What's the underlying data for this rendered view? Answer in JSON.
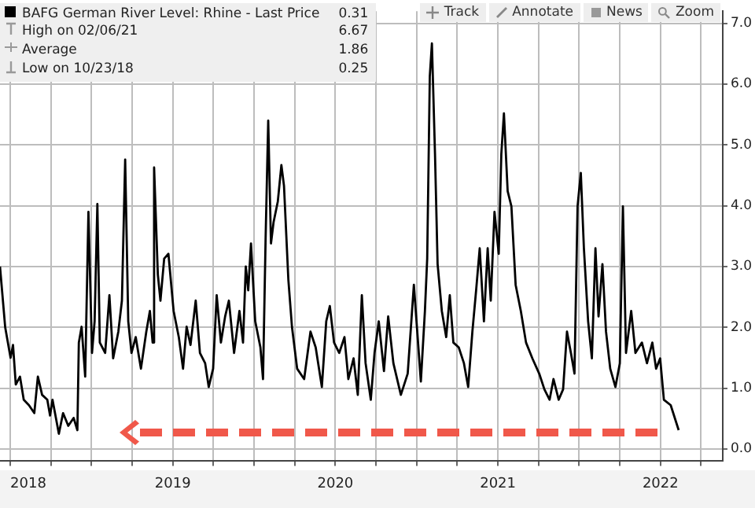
{
  "chart_data": {
    "type": "line",
    "legend": "top left",
    "grid": true,
    "marker": "none",
    "line_style": "solid",
    "xlim": [
      2018.437,
      2022.883
    ],
    "ylim": [
      -0.2,
      7.2
    ],
    "xticks": [
      {
        "value": 2018.5,
        "label": "2018"
      },
      {
        "value": 2018.75,
        "label": null
      },
      {
        "value": 2019,
        "label": null
      },
      {
        "value": 2019.25,
        "label": null
      },
      {
        "value": 2019.5,
        "label": "2019"
      },
      {
        "value": 2019.75,
        "label": null
      },
      {
        "value": 2020,
        "label": null
      },
      {
        "value": 2020.25,
        "label": null
      },
      {
        "value": 2020.5,
        "label": "2020"
      },
      {
        "value": 2020.75,
        "label": null
      },
      {
        "value": 2021,
        "label": null
      },
      {
        "value": 2021.25,
        "label": null
      },
      {
        "value": 2021.5,
        "label": "2021"
      },
      {
        "value": 2021.75,
        "label": null
      },
      {
        "value": 2022,
        "label": null
      },
      {
        "value": 2022.25,
        "label": null
      },
      {
        "value": 2022.5,
        "label": "2022"
      },
      {
        "value": 2022.75,
        "label": null
      }
    ],
    "yticks": [
      {
        "value": 0,
        "label": "0.0"
      },
      {
        "value": 1,
        "label": "1.0"
      },
      {
        "value": 2,
        "label": "2.0"
      },
      {
        "value": 3,
        "label": "3.0"
      },
      {
        "value": 4,
        "label": "4.0"
      },
      {
        "value": 5,
        "label": "5.0"
      },
      {
        "value": 6,
        "label": "6.0"
      },
      {
        "value": 7,
        "label": "7.0"
      }
    ],
    "annotations": [
      "0.31",
      "High on 02/06/21",
      "6.67",
      "Average",
      "1.86",
      "Low on 10/23/18",
      "0.25",
      "Track",
      "Annotate",
      "News",
      "Zoom"
    ],
    "series": [
      {
        "name": "BAFG German River Level: Rhine - Last Price",
        "color": "#000000",
        "x": [
          2018.437,
          2018.469,
          2018.502,
          2018.517,
          2018.534,
          2018.56,
          2018.583,
          2018.615,
          2018.648,
          2018.67,
          2018.696,
          2018.728,
          2018.745,
          2018.76,
          2018.799,
          2018.825,
          2018.857,
          2018.89,
          2018.913,
          2018.922,
          2018.939,
          2018.961,
          2018.981,
          2019.003,
          2019.019,
          2019.036,
          2019.051,
          2019.084,
          2019.11,
          2019.133,
          2019.165,
          2019.187,
          2019.207,
          2019.226,
          2019.246,
          2019.272,
          2019.304,
          2019.337,
          2019.359,
          2019.376,
          2019.385,
          2019.408,
          2019.424,
          2019.447,
          2019.473,
          2019.505,
          2019.537,
          2019.563,
          2019.585,
          2019.609,
          2019.641,
          2019.667,
          2019.699,
          2019.721,
          2019.748,
          2019.77,
          2019.796,
          2019.822,
          2019.845,
          2019.877,
          2019.91,
          2019.932,
          2019.949,
          2019.964,
          2019.981,
          2020.007,
          2020.039,
          2020.055,
          2020.071,
          2020.087,
          2020.104,
          2020.12,
          2020.146,
          2020.168,
          2020.184,
          2020.211,
          2020.233,
          2020.265,
          2020.308,
          2020.347,
          2020.379,
          2020.417,
          2020.444,
          2020.466,
          2020.492,
          2020.524,
          2020.556,
          2020.58,
          2020.612,
          2020.638,
          2020.663,
          2020.686,
          2020.718,
          2020.741,
          2020.767,
          2020.799,
          2020.825,
          2020.857,
          2020.903,
          2020.945,
          2020.983,
          2021.026,
          2021.051,
          2021.065,
          2021.081,
          2021.094,
          2021.113,
          2021.129,
          2021.155,
          2021.182,
          2021.204,
          2021.226,
          2021.259,
          2021.291,
          2021.317,
          2021.343,
          2021.366,
          2021.388,
          2021.414,
          2021.437,
          2021.456,
          2021.479,
          2021.505,
          2021.521,
          2021.537,
          2021.56,
          2021.583,
          2021.609,
          2021.641,
          2021.673,
          2021.712,
          2021.754,
          2021.786,
          2021.818,
          2021.842,
          2021.874,
          2021.901,
          2021.925,
          2021.949,
          2021.971,
          2021.99,
          2022.01,
          2022.029,
          2022.055,
          2022.078,
          2022.1,
          2022.119,
          2022.143,
          2022.165,
          2022.191,
          2022.223,
          2022.25,
          2022.269,
          2022.288,
          2022.32,
          2022.346,
          2022.386,
          2022.417,
          2022.45,
          2022.473,
          2022.498,
          2022.521,
          2022.563,
          2022.612
        ],
        "values": [
          3.0,
          2.0,
          1.5,
          1.71,
          1.06,
          1.19,
          0.81,
          0.72,
          0.59,
          1.19,
          0.89,
          0.81,
          0.55,
          0.81,
          0.25,
          0.59,
          0.38,
          0.51,
          0.31,
          1.75,
          2.01,
          1.19,
          3.9,
          1.58,
          2.1,
          4.03,
          1.75,
          1.58,
          2.53,
          1.49,
          1.93,
          2.44,
          4.76,
          2.1,
          1.58,
          1.84,
          1.32,
          1.93,
          2.27,
          1.75,
          4.63,
          2.87,
          2.44,
          3.13,
          3.21,
          2.27,
          1.84,
          1.32,
          2.01,
          1.71,
          2.44,
          1.58,
          1.41,
          1.02,
          1.32,
          2.53,
          1.75,
          2.18,
          2.44,
          1.58,
          2.27,
          1.75,
          3.0,
          2.61,
          3.38,
          2.1,
          1.67,
          1.15,
          3.47,
          5.4,
          3.38,
          3.73,
          4.07,
          4.67,
          4.33,
          2.78,
          2.01,
          1.32,
          1.15,
          1.93,
          1.67,
          1.02,
          2.1,
          2.35,
          1.75,
          1.58,
          1.84,
          1.15,
          1.49,
          0.89,
          2.53,
          1.41,
          0.81,
          1.58,
          2.1,
          1.28,
          2.18,
          1.41,
          0.89,
          1.24,
          2.7,
          1.11,
          2.27,
          3.13,
          6.13,
          6.67,
          4.85,
          3.04,
          2.27,
          1.84,
          2.53,
          1.75,
          1.67,
          1.41,
          1.02,
          1.93,
          2.61,
          3.3,
          2.1,
          3.3,
          2.44,
          3.9,
          3.21,
          4.85,
          5.52,
          4.24,
          3.99,
          2.7,
          2.27,
          1.75,
          1.49,
          1.24,
          0.98,
          0.81,
          1.15,
          0.81,
          0.98,
          1.93,
          1.58,
          1.24,
          3.99,
          4.54,
          3.3,
          2.1,
          1.49,
          3.3,
          2.18,
          3.04,
          1.93,
          1.32,
          1.02,
          1.41,
          3.99,
          1.58,
          2.27,
          1.58,
          1.75,
          1.41,
          1.75,
          1.32,
          1.49,
          0.81,
          0.72,
          0.31
        ]
      }
    ]
  }
}
